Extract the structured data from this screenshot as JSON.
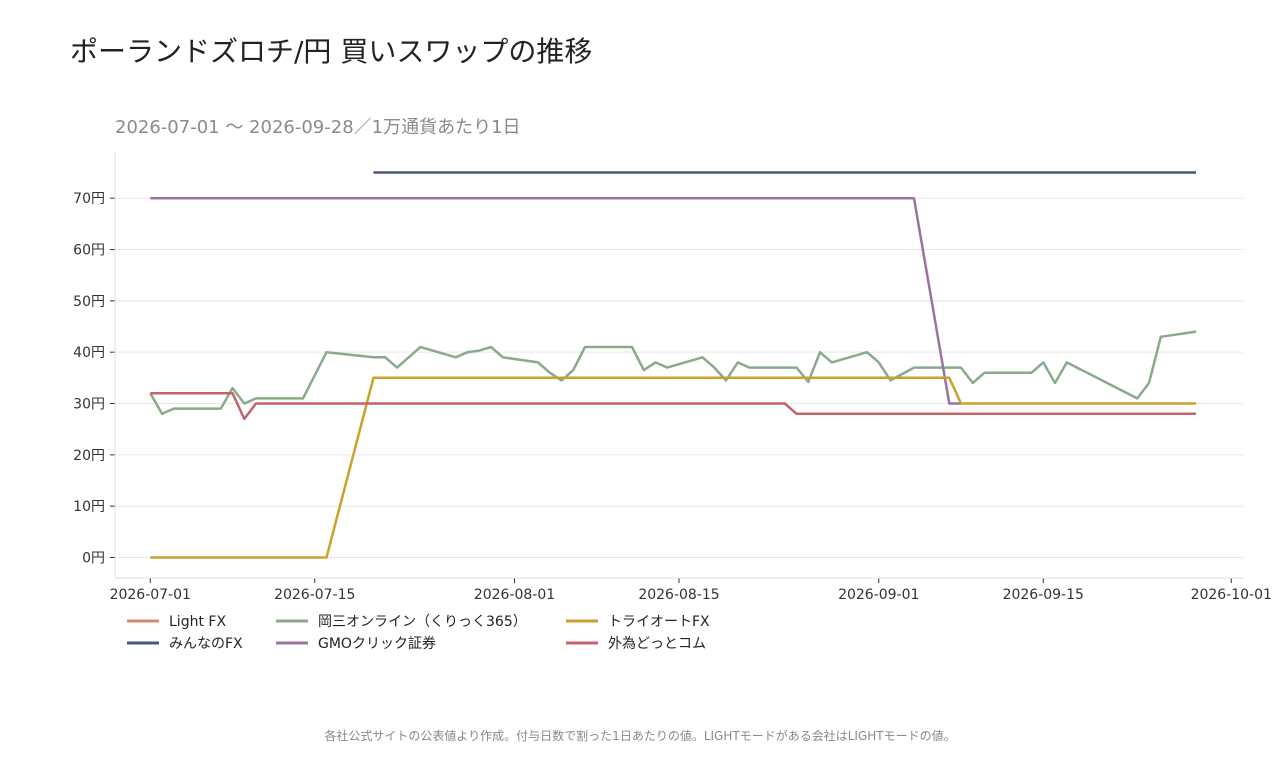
{
  "page": {
    "title": "ポーランドズロチ/円 買いスワップの推移",
    "footer_note": "各社公式サイトの公表値より作成。付与日数で割った1日あたりの値。LIGHTモードがある会社はLIGHTモードの値。"
  },
  "chart_data": {
    "type": "line",
    "subtitle": "2026-07-01 〜 2026-09-28／1万通貨あたり1日",
    "xlabel": "",
    "ylabel": "",
    "x_type": "date",
    "xlim": [
      "2026-06-28",
      "2026-10-02"
    ],
    "ylim": [
      -4,
      79
    ],
    "y_ticks": [
      0,
      10,
      20,
      30,
      40,
      50,
      60,
      70
    ],
    "y_tick_labels": [
      "0円",
      "10円",
      "20円",
      "30円",
      "40円",
      "50円",
      "60円",
      "70円"
    ],
    "x_ticks": [
      "2026-07-01",
      "2026-07-15",
      "2026-08-01",
      "2026-08-15",
      "2026-09-01",
      "2026-09-15",
      "2026-10-01"
    ],
    "x_tick_labels": [
      "2026-07-01",
      "2026-07-15",
      "2026-08-01",
      "2026-08-15",
      "2026-09-01",
      "2026-09-15",
      "2026-10-01"
    ],
    "grid": "horizontal",
    "legend_position": "bottom-left",
    "series": [
      {
        "name": "Light FX",
        "color": "#d9896b",
        "points": []
      },
      {
        "name": "みんなのFX",
        "color": "#46577a",
        "points": [
          [
            "2026-07-20",
            75
          ],
          [
            "2026-09-28",
            75
          ]
        ]
      },
      {
        "name": "岡三オンライン（くりっく365）",
        "color": "#8aaa8c",
        "points": [
          [
            "2026-07-01",
            32
          ],
          [
            "2026-07-02",
            28
          ],
          [
            "2026-07-03",
            29
          ],
          [
            "2026-07-07",
            29
          ],
          [
            "2026-07-08",
            33
          ],
          [
            "2026-07-09",
            30
          ],
          [
            "2026-07-10",
            31
          ],
          [
            "2026-07-14",
            31
          ],
          [
            "2026-07-16",
            40
          ],
          [
            "2026-07-20",
            39
          ],
          [
            "2026-07-21",
            39
          ],
          [
            "2026-07-22",
            37
          ],
          [
            "2026-07-24",
            41
          ],
          [
            "2026-07-27",
            39
          ],
          [
            "2026-07-28",
            40
          ],
          [
            "2026-07-29",
            40.3
          ],
          [
            "2026-07-30",
            41
          ],
          [
            "2026-07-31",
            39
          ],
          [
            "2026-08-03",
            38
          ],
          [
            "2026-08-04",
            36
          ],
          [
            "2026-08-05",
            34.5
          ],
          [
            "2026-08-06",
            36.5
          ],
          [
            "2026-08-07",
            41
          ],
          [
            "2026-08-11",
            41
          ],
          [
            "2026-08-12",
            36.5
          ],
          [
            "2026-08-13",
            38
          ],
          [
            "2026-08-14",
            37
          ],
          [
            "2026-08-17",
            39
          ],
          [
            "2026-08-18",
            37
          ],
          [
            "2026-08-19",
            34.5
          ],
          [
            "2026-08-20",
            38
          ],
          [
            "2026-08-21",
            37
          ],
          [
            "2026-08-25",
            37
          ],
          [
            "2026-08-26",
            34.2
          ],
          [
            "2026-08-27",
            40
          ],
          [
            "2026-08-28",
            38
          ],
          [
            "2026-08-31",
            40
          ],
          [
            "2026-09-01",
            38
          ],
          [
            "2026-09-02",
            34.5
          ],
          [
            "2026-09-04",
            37
          ],
          [
            "2026-09-08",
            37
          ],
          [
            "2026-09-09",
            34
          ],
          [
            "2026-09-10",
            36
          ],
          [
            "2026-09-14",
            36
          ],
          [
            "2026-09-15",
            38
          ],
          [
            "2026-09-16",
            34
          ],
          [
            "2026-09-17",
            38
          ],
          [
            "2026-09-23",
            31
          ],
          [
            "2026-09-24",
            34
          ],
          [
            "2026-09-25",
            43
          ],
          [
            "2026-09-28",
            44
          ]
        ]
      },
      {
        "name": "GMOクリック証券",
        "color": "#9b72a2",
        "points": [
          [
            "2026-07-01",
            70
          ],
          [
            "2026-09-04",
            70
          ],
          [
            "2026-09-07",
            30
          ],
          [
            "2026-09-08",
            30
          ]
        ]
      },
      {
        "name": "トライオートFX",
        "color": "#c9a22e",
        "points": [
          [
            "2026-07-01",
            0
          ],
          [
            "2026-07-16",
            0
          ],
          [
            "2026-07-20",
            35
          ],
          [
            "2026-09-07",
            35
          ],
          [
            "2026-09-08",
            30
          ],
          [
            "2026-09-28",
            30
          ]
        ]
      },
      {
        "name": "外為どっとコム",
        "color": "#c4646a",
        "points": [
          [
            "2026-07-01",
            32
          ],
          [
            "2026-07-08",
            32
          ],
          [
            "2026-07-09",
            27
          ],
          [
            "2026-07-10",
            30
          ],
          [
            "2026-08-24",
            30
          ],
          [
            "2026-08-25",
            28
          ],
          [
            "2026-09-28",
            28
          ]
        ]
      }
    ]
  }
}
